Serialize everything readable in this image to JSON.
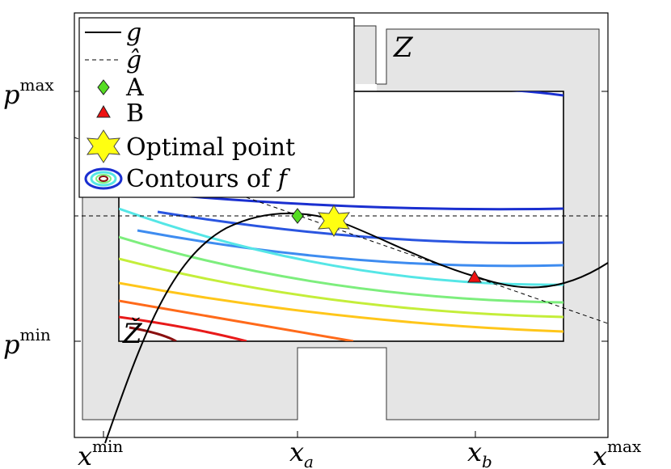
{
  "figure": {
    "axes": {
      "x_ticks": [
        {
          "label": "x",
          "sup": "min",
          "sub": ""
        },
        {
          "label": "x",
          "sup": "",
          "sub": "a"
        },
        {
          "label": "x",
          "sup": "",
          "sub": "b"
        },
        {
          "label": "x",
          "sup": "max",
          "sub": ""
        }
      ],
      "y_ticks": [
        {
          "label": "p",
          "sup": "max"
        },
        {
          "label": "p",
          "sup": "min"
        }
      ]
    },
    "regions": {
      "outer_label": "Z",
      "inner_label": "Ž"
    },
    "legend": [
      {
        "key": "g",
        "text": "g",
        "style": "solid-line"
      },
      {
        "key": "g_hat",
        "text": "ĝ",
        "style": "dashed-line"
      },
      {
        "key": "A",
        "text": "A",
        "style": "green-diamond"
      },
      {
        "key": "B",
        "text": "B",
        "style": "red-triangle"
      },
      {
        "key": "opt",
        "text": "Optimal point",
        "style": "yellow-star"
      },
      {
        "key": "contours",
        "text": "Contours of ",
        "italic_suffix": "f",
        "style": "ellipse-contours"
      }
    ],
    "points": {
      "A": {
        "label": "A",
        "color": "#55dd22"
      },
      "B": {
        "label": "B",
        "color": "#ee1111"
      },
      "optimal": {
        "label": "Optimal point",
        "color": "#ffff11"
      }
    },
    "colors": {
      "region_fill": "#e5e5e5",
      "contours": [
        "#1a2fd0",
        "#2a55e0",
        "#3e8cf0",
        "#55e6e6",
        "#7dee7d",
        "#c4ee3a",
        "#ffc61a",
        "#ff6a1a",
        "#e81a1a",
        "#8a1010"
      ]
    }
  }
}
